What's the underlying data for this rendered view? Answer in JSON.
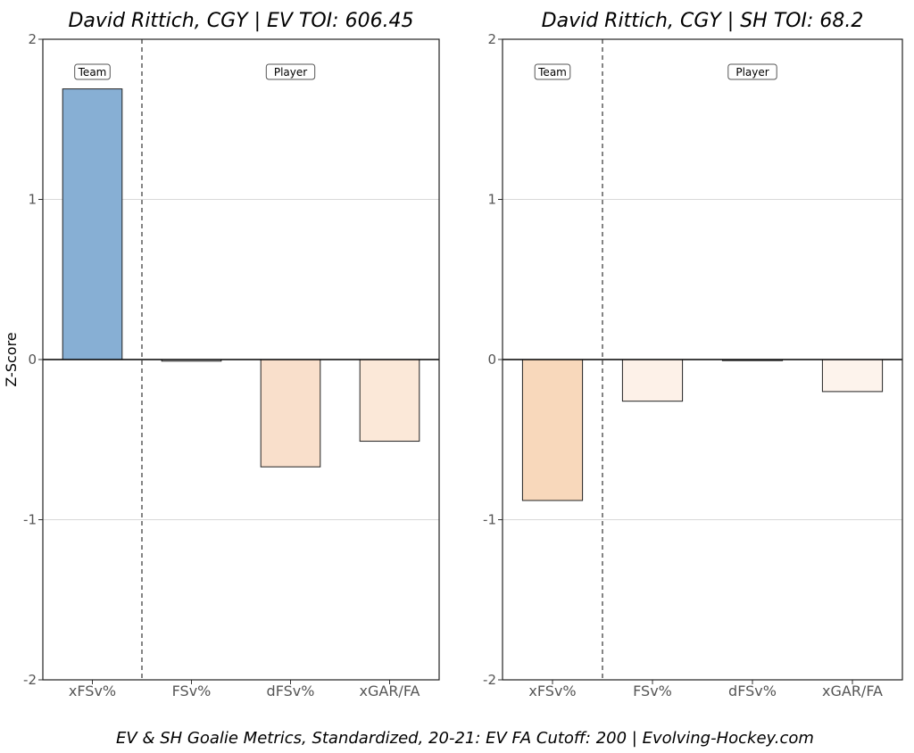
{
  "footer": "EV & SH Goalie Metrics, Standardized, 20-21: EV FA Cutoff: 200    |    Evolving-Hockey.com",
  "chart_data": [
    {
      "type": "bar",
      "title": "David Rittich, CGY | EV TOI: 606.45",
      "ylabel": "Z-Score",
      "xlabel": "",
      "ylim": [
        -2,
        2
      ],
      "yticks": [
        2,
        1,
        0,
        -1,
        -2
      ],
      "grid": "horizontal",
      "categories": [
        "xFSv%",
        "FSv%",
        "dFSv%",
        "xGAR/FA"
      ],
      "values": [
        1.69,
        -0.01,
        -0.67,
        -0.51
      ],
      "colors": [
        "#87afd4",
        "#ffffff",
        "#f9dfcb",
        "#fbe8d8"
      ],
      "group_labels": [
        {
          "label": "Team",
          "span": [
            0,
            0
          ]
        },
        {
          "label": "Player",
          "span": [
            1,
            3
          ]
        }
      ]
    },
    {
      "type": "bar",
      "title": "David Rittich, CGY | SH TOI: 68.2",
      "ylabel": "",
      "xlabel": "",
      "ylim": [
        -2,
        2
      ],
      "yticks": [
        2,
        1,
        0,
        -1,
        -2
      ],
      "grid": "horizontal",
      "categories": [
        "xFSv%",
        "FSv%",
        "dFSv%",
        "xGAR/FA"
      ],
      "values": [
        -0.88,
        -0.26,
        0.0,
        -0.2
      ],
      "colors": [
        "#f8d8bb",
        "#fdf1e8",
        "#ffffff",
        "#fdf3ec"
      ],
      "group_labels": [
        {
          "label": "Team",
          "span": [
            0,
            0
          ]
        },
        {
          "label": "Player",
          "span": [
            1,
            3
          ]
        }
      ]
    }
  ]
}
